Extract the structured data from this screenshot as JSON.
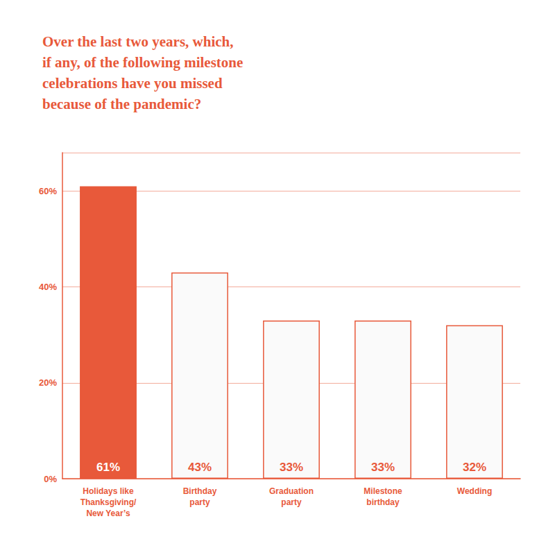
{
  "chart_data": {
    "type": "bar",
    "title": "Over the last two years, which,\nif any, of the following milestone\ncelebrations have you missed\nbecause of the pandemic?",
    "categories": [
      "Holidays like\nThanksgiving/\nNew Year’s",
      "Birthday\nparty",
      "Graduation\nparty",
      "Milestone\nbirthday",
      "Wedding"
    ],
    "values": [
      61,
      43,
      33,
      33,
      32
    ],
    "value_labels": [
      "61%",
      "43%",
      "33%",
      "33%",
      "32%"
    ],
    "data_labels": true,
    "color": "#E8593A",
    "colors": [
      "#E8593A",
      "#FAFAFA",
      "#FAFAFA",
      "#FAFAFA",
      "#FAFAFA"
    ],
    "ylim": [
      0,
      68
    ],
    "yticks": [
      {
        "value": 0,
        "label": "0%"
      },
      {
        "value": 20,
        "label": "20%"
      },
      {
        "value": 40,
        "label": "40%"
      },
      {
        "value": 60,
        "label": "60%"
      }
    ],
    "grid": true
  }
}
